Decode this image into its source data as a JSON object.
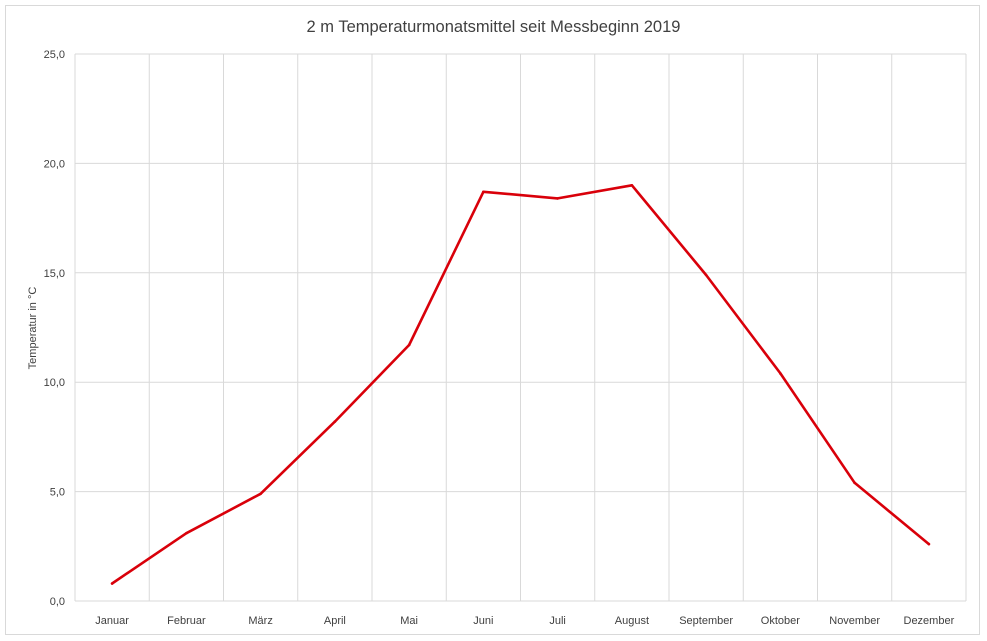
{
  "chart_data": {
    "type": "line",
    "title": "2 m Temperaturmonatsmittel seit Messbeginn 2019",
    "xlabel": "",
    "ylabel": "Temperatur in °C",
    "categories": [
      "Januar",
      "Februar",
      "März",
      "April",
      "Mai",
      "Juni",
      "Juli",
      "August",
      "September",
      "Oktober",
      "November",
      "Dezember"
    ],
    "series": [
      {
        "name": "",
        "values": [
          0.8,
          3.1,
          4.9,
          8.2,
          11.7,
          18.7,
          18.4,
          19.0,
          14.9,
          10.4,
          5.4,
          2.6
        ]
      }
    ],
    "ylim": [
      0,
      25
    ],
    "yticks": [
      "0,0",
      "5,0",
      "10,0",
      "15,0",
      "20,0",
      "25,0"
    ],
    "ytick_values": [
      0,
      5,
      10,
      15,
      20,
      25
    ],
    "grid": true,
    "legend": "none",
    "line_color": "#d9000a",
    "grid_color": "#d9d9d9"
  }
}
